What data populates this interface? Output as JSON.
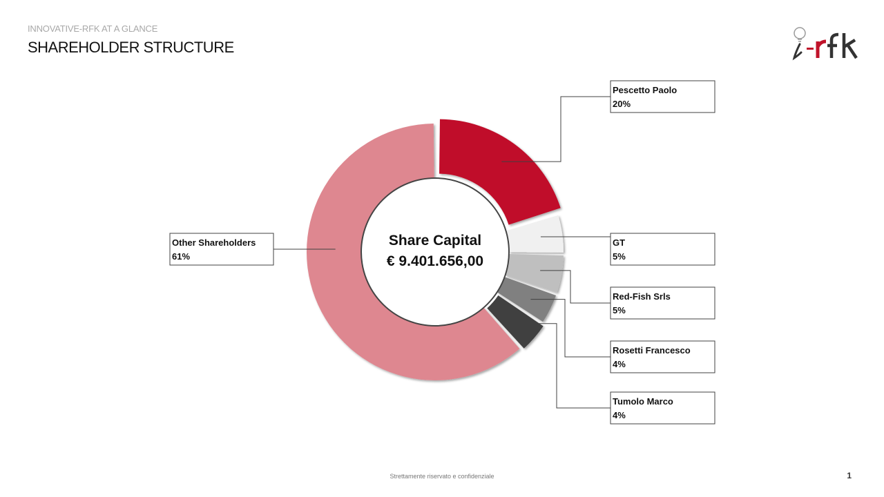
{
  "header": {
    "supertitle": "INNOVATIVE-RFK AT A GLANCE",
    "title": "SHAREHOLDER STRUCTURE"
  },
  "logo": {
    "text": "i-rfk",
    "icon": "lightbulb-icon",
    "accent": "#c0132a"
  },
  "center": {
    "line1": "Share Capital",
    "line2": "€ 9.401.656,00"
  },
  "chart_data": {
    "type": "pie",
    "title": "",
    "labels": [
      "Pescetto Paolo",
      "GT",
      "Red-Fish Srls",
      "Rosetti Francesco",
      "Tumolo Marco",
      "Other Shareholders"
    ],
    "values": [
      20,
      5,
      5,
      4,
      4,
      61
    ],
    "value_labels": [
      "20%",
      "5%",
      "5%",
      "4%",
      "4%",
      "61%"
    ],
    "colors": [
      "#c0102a",
      "#f0f0f0",
      "#bfbfbf",
      "#808080",
      "#3f3f3f",
      "#de8790"
    ],
    "donut": true
  },
  "footer": {
    "text": "Strettamente riservato e confidenziale",
    "page": "1"
  }
}
